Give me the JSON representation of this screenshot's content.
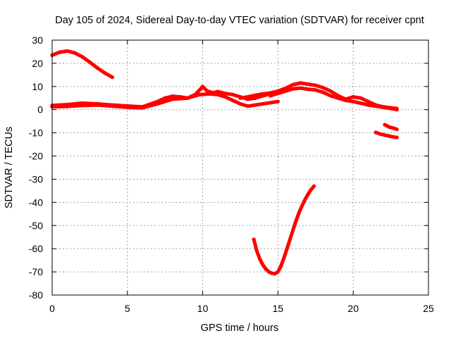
{
  "chart_data": {
    "type": "scatter",
    "title": "Day 105 of 2024, Sidereal Day-to-day VTEC variation (SDTVAR) for receiver cpnt",
    "xlabel": "GPS time / hours",
    "ylabel": "SDTVAR / TECUs",
    "xlim": [
      0,
      25
    ],
    "ylim": [
      -80,
      30
    ],
    "grid": true,
    "x_ticks": [
      0,
      5,
      10,
      15,
      20,
      25
    ],
    "x_tick_labels": [
      "0",
      "5",
      "10",
      "15",
      "20",
      "25"
    ],
    "y_ticks": [
      30,
      20,
      10,
      0,
      -10,
      -20,
      -30,
      -40,
      -50,
      -60,
      -70,
      -80
    ],
    "y_tick_labels": [
      "30",
      "20",
      "10",
      "0",
      "-10",
      "-20",
      "-30",
      "-40",
      "-50",
      "-60",
      "-70",
      "-80"
    ],
    "series_color": "#ff0000",
    "series": [
      {
        "name": "early-high-arc",
        "x": [
          0.0,
          0.5,
          1.0,
          1.5,
          2.0,
          2.5,
          3.0,
          3.5,
          4.0
        ],
        "y": [
          23.5,
          24.8,
          25.3,
          24.5,
          22.8,
          20.5,
          18.0,
          15.8,
          14.0
        ]
      },
      {
        "name": "main-band-a",
        "x": [
          0.0,
          1.0,
          2.0,
          3.0,
          4.0,
          5.0,
          6.0,
          7.0,
          7.5,
          8.0,
          8.5,
          9.0,
          9.5,
          9.8,
          10.0,
          10.3,
          10.7,
          11.0,
          11.5,
          12.0,
          12.5,
          13.0,
          13.5,
          14.0,
          14.5
        ],
        "y": [
          1.8,
          2.2,
          2.8,
          2.5,
          2.0,
          1.6,
          1.2,
          3.5,
          5.0,
          5.8,
          5.5,
          5.0,
          6.5,
          8.5,
          10.0,
          8.0,
          7.3,
          7.8,
          7.0,
          6.5,
          5.5,
          4.5,
          5.0,
          6.0,
          6.8
        ]
      },
      {
        "name": "main-band-b",
        "x": [
          0.0,
          1.0,
          2.0,
          3.0,
          4.0,
          5.0,
          6.0,
          7.0,
          8.0,
          9.0,
          9.8,
          10.5,
          11.0,
          11.5,
          12.0,
          12.5,
          13.0,
          13.5,
          14.0,
          14.5,
          15.0
        ],
        "y": [
          1.2,
          1.4,
          1.8,
          2.0,
          1.5,
          1.0,
          0.8,
          2.5,
          4.5,
          5.0,
          6.5,
          6.8,
          6.5,
          5.5,
          4.0,
          2.5,
          1.5,
          2.0,
          2.5,
          3.0,
          3.5
        ]
      },
      {
        "name": "main-band-c",
        "x": [
          12.5,
          13.0,
          13.5,
          14.0,
          14.5,
          15.0,
          15.5,
          16.0,
          16.5,
          17.0,
          17.5,
          18.0,
          18.5,
          19.0,
          19.5,
          20.0,
          20.5,
          21.0,
          21.5,
          22.0,
          22.5,
          22.9
        ],
        "y": [
          5.0,
          5.5,
          6.2,
          6.8,
          7.2,
          8.0,
          9.2,
          10.8,
          11.5,
          11.0,
          10.5,
          9.5,
          8.0,
          6.0,
          4.5,
          5.5,
          5.0,
          3.5,
          2.0,
          1.2,
          0.8,
          0.5
        ]
      },
      {
        "name": "main-band-d",
        "x": [
          14.5,
          15.0,
          15.5,
          16.0,
          16.5,
          17.0,
          17.5,
          18.0,
          18.5,
          19.0,
          19.5,
          20.0,
          20.5,
          21.0,
          21.5,
          22.0,
          22.5,
          22.9
        ],
        "y": [
          6.0,
          7.0,
          8.0,
          9.0,
          9.3,
          8.8,
          8.5,
          7.5,
          6.0,
          5.0,
          4.0,
          3.5,
          2.8,
          2.0,
          1.5,
          1.0,
          0.5,
          0.0
        ]
      },
      {
        "name": "late-negative-arc-a",
        "x": [
          22.1,
          22.4,
          22.7,
          22.9
        ],
        "y": [
          -6.5,
          -7.5,
          -8.0,
          -8.5
        ]
      },
      {
        "name": "late-negative-arc-b",
        "x": [
          21.5,
          21.8,
          22.1,
          22.4,
          22.7,
          22.9
        ],
        "y": [
          -9.8,
          -10.5,
          -11.0,
          -11.4,
          -11.8,
          -12.0
        ]
      },
      {
        "name": "deep-v-dip",
        "x": [
          13.4,
          13.6,
          13.8,
          14.0,
          14.2,
          14.4,
          14.6,
          14.8,
          15.0,
          15.2,
          15.4,
          15.6,
          15.8,
          16.0,
          16.2,
          16.4,
          16.6,
          16.8,
          17.0,
          17.2,
          17.4
        ],
        "y": [
          -56.0,
          -61.0,
          -64.5,
          -67.0,
          -68.8,
          -70.0,
          -70.6,
          -70.8,
          -70.0,
          -67.5,
          -64.0,
          -60.0,
          -56.0,
          -52.0,
          -48.0,
          -44.5,
          -41.5,
          -38.8,
          -36.5,
          -34.5,
          -33.0
        ]
      }
    ]
  }
}
